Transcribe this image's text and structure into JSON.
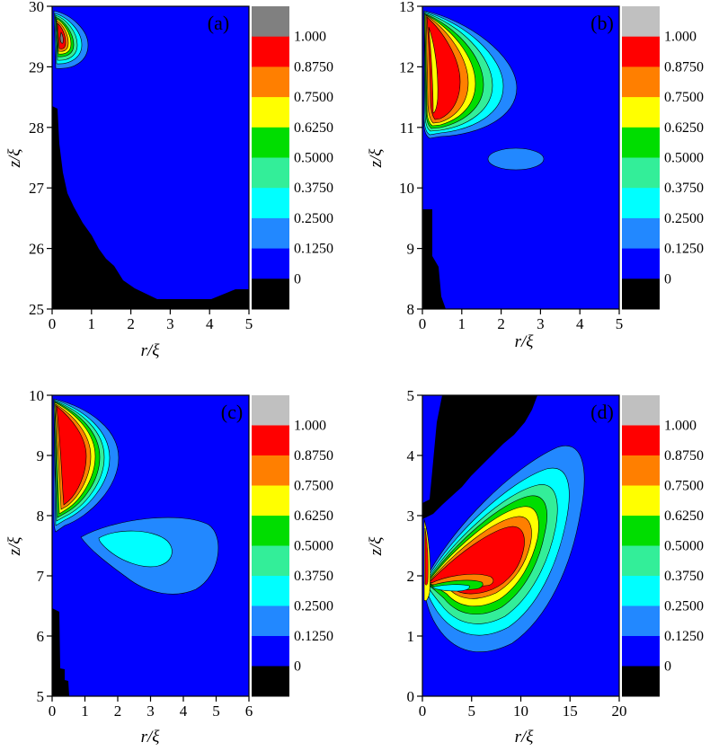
{
  "colorbar": {
    "levels": [
      "1.000",
      "0.8750",
      "0.7500",
      "0.6250",
      "0.5000",
      "0.3750",
      "0.2500",
      "0.1250",
      "0"
    ],
    "colors": {
      "gray": "#c0c0c0",
      "dark_gray": "#808080",
      "red": "#ff0000",
      "orange": "#ff7f00",
      "yellow": "#ffff00",
      "green": "#00dd00",
      "seafoam": "#33ee99",
      "cyan": "#00ffff",
      "light_blue": "#2288ff",
      "blue": "#0000ff",
      "black": "#000000"
    }
  },
  "chart_data": [
    {
      "type": "heatmap",
      "panel": "(a)",
      "xlabel": "r/ξ",
      "ylabel": "z/ξ",
      "xlim": [
        0,
        5
      ],
      "ylim": [
        25,
        30
      ],
      "xticks": [
        "0",
        "1",
        "2",
        "3",
        "4",
        "5"
      ],
      "yticks": [
        "25",
        "26",
        "27",
        "28",
        "29",
        "30"
      ],
      "features": [
        {
          "level": "1.000",
          "r": 0.3,
          "z": 29.5
        },
        {
          "level": "0",
          "region": "lower-left boundary",
          "r_range": [
            0,
            5
          ],
          "z_range": [
            25,
            28.3
          ]
        }
      ]
    },
    {
      "type": "heatmap",
      "panel": "(b)",
      "xlabel": "r/ξ",
      "ylabel": "z/ξ",
      "xlim": [
        0,
        5
      ],
      "ylim": [
        8,
        13
      ],
      "xticks": [
        "0",
        "1",
        "2",
        "3",
        "4",
        "5"
      ],
      "yticks": [
        "8",
        "9",
        "10",
        "11",
        "12",
        "13"
      ],
      "features": [
        {
          "level": "1.000",
          "r": 0.5,
          "z": 12.0
        },
        {
          "level": "0.1250",
          "r": 2.4,
          "z": 10.5
        }
      ]
    },
    {
      "type": "heatmap",
      "panel": "(c)",
      "xlabel": "r/ξ",
      "ylabel": "z/ξ",
      "xlim": [
        0,
        6
      ],
      "ylim": [
        5,
        10
      ],
      "xticks": [
        "0",
        "1",
        "2",
        "3",
        "4",
        "5",
        "6"
      ],
      "yticks": [
        "5",
        "6",
        "7",
        "8",
        "9",
        "10"
      ],
      "features": [
        {
          "level": "1.000",
          "r": 0.7,
          "z": 8.9
        },
        {
          "level": "0.2500",
          "r": 2.7,
          "z": 7.4
        }
      ]
    },
    {
      "type": "heatmap",
      "panel": "(d)",
      "xlabel": "r/ξ",
      "ylabel": "z/ξ",
      "xlim": [
        0,
        20
      ],
      "ylim": [
        0,
        5
      ],
      "xticks": [
        "0",
        "5",
        "10",
        "15",
        "20"
      ],
      "yticks": [
        "0",
        "1",
        "2",
        "3",
        "4",
        "5"
      ],
      "features": [
        {
          "level": "1.000",
          "r": 8.5,
          "z": 2.1
        },
        {
          "level": "0",
          "region": "upper wedge",
          "r_range": [
            0,
            11.5
          ],
          "z_range": [
            3.0,
            5
          ]
        }
      ]
    }
  ]
}
